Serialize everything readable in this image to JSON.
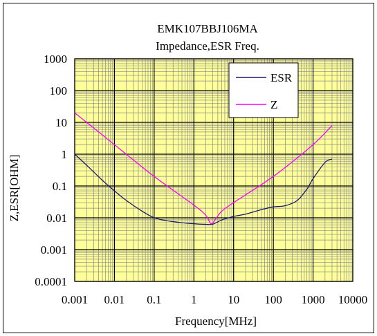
{
  "chart_data": {
    "type": "line",
    "title": "EMK107BBJ106MA",
    "subtitle": "Impedance,ESR Freq.",
    "xlabel": "Frequency[MHz]",
    "ylabel": "Z,ESR[OHM]",
    "x_scale": "log",
    "y_scale": "log",
    "xlim": [
      0.001,
      10000
    ],
    "ylim": [
      0.0001,
      1000
    ],
    "x_ticks": [
      "0.001",
      "0.01",
      "0.1",
      "1",
      "10",
      "100",
      "1000",
      "10000"
    ],
    "y_ticks": [
      "1000",
      "100",
      "10",
      "1",
      "0.1",
      "0.01",
      "0.001",
      "0.0001"
    ],
    "grid": true,
    "legend_position": "top-right",
    "colors": {
      "ESR": "#1a1a6e",
      "Z": "#ff00ff",
      "plot_bg": "#ffff99",
      "grid": "#8a8a8a"
    },
    "series": [
      {
        "name": "ESR",
        "x": [
          0.001,
          0.002,
          0.005,
          0.01,
          0.02,
          0.05,
          0.1,
          0.2,
          0.5,
          1,
          2,
          3,
          5,
          10,
          20,
          50,
          100,
          200,
          400,
          700,
          1000,
          2000,
          3000
        ],
        "y": [
          1.0,
          0.45,
          0.15,
          0.07,
          0.035,
          0.016,
          0.01,
          0.0082,
          0.007,
          0.0065,
          0.0062,
          0.0063,
          0.0085,
          0.011,
          0.013,
          0.018,
          0.022,
          0.024,
          0.035,
          0.08,
          0.17,
          0.55,
          0.7
        ]
      },
      {
        "name": "Z",
        "x": [
          0.001,
          0.01,
          0.1,
          1,
          2,
          2.7,
          3.5,
          5,
          10,
          100,
          1000,
          3000
        ],
        "y": [
          20,
          2.0,
          0.2,
          0.025,
          0.012,
          0.0065,
          0.009,
          0.016,
          0.03,
          0.2,
          2.0,
          8.0
        ]
      }
    ]
  }
}
